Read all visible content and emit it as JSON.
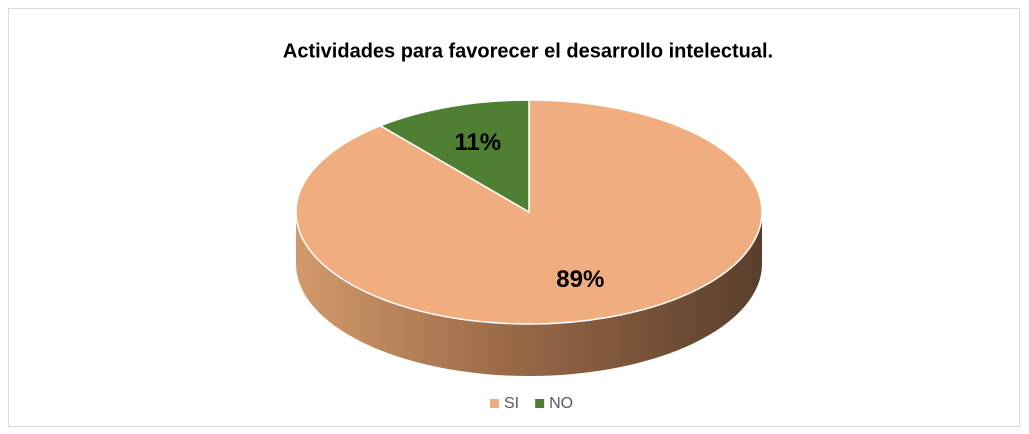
{
  "chart_data": {
    "type": "pie",
    "title": "Actividades para favorecer el desarrollo intelectual.",
    "categories": [
      "SI",
      "NO"
    ],
    "values": [
      89,
      11
    ],
    "value_labels": [
      "89%",
      "11%"
    ],
    "colors": [
      "#f0ae80",
      "#4e7f32"
    ],
    "legend": "bottom"
  }
}
